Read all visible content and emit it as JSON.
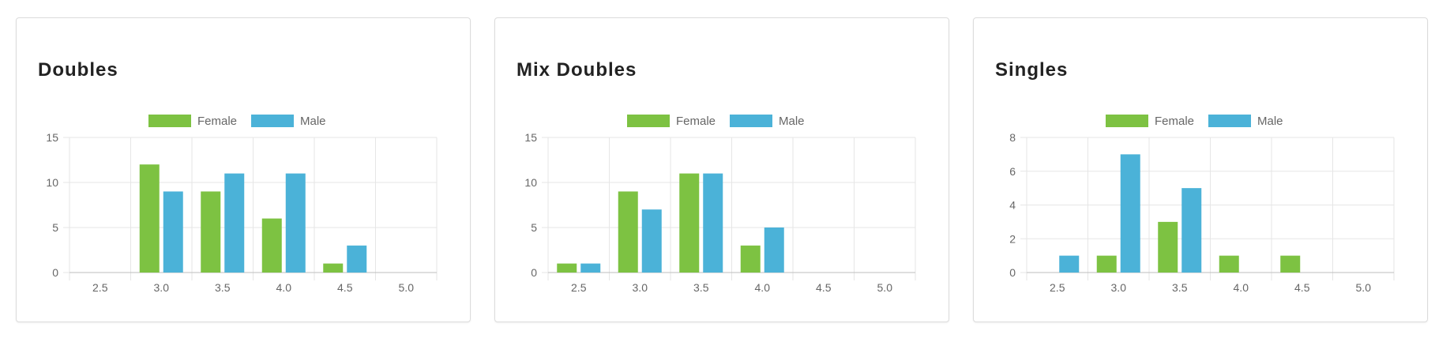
{
  "colors": {
    "female": "#7dc242",
    "male": "#4bb2d8",
    "grid": "#e6e6e6",
    "axis": "#bdbdbd",
    "text": "#666666"
  },
  "cards": [
    {
      "title": "Doubles",
      "chart_data": {
        "type": "bar",
        "categories": [
          "2.5",
          "3.0",
          "3.5",
          "4.0",
          "4.5",
          "5.0"
        ],
        "series": [
          {
            "name": "Female",
            "values": [
              0,
              12,
              9,
              6,
              1,
              0
            ]
          },
          {
            "name": "Male",
            "values": [
              0,
              9,
              11,
              11,
              3,
              0
            ]
          }
        ],
        "yticks": [
          "0",
          "5",
          "10",
          "15"
        ],
        "ylim": [
          0,
          15
        ],
        "grid": true,
        "legend": "top-center"
      }
    },
    {
      "title": "Mix Doubles",
      "chart_data": {
        "type": "bar",
        "categories": [
          "2.5",
          "3.0",
          "3.5",
          "4.0",
          "4.5",
          "5.0"
        ],
        "series": [
          {
            "name": "Female",
            "values": [
              1,
              9,
              11,
              3,
              0,
              0
            ]
          },
          {
            "name": "Male",
            "values": [
              1,
              7,
              11,
              5,
              0,
              0
            ]
          }
        ],
        "yticks": [
          "0",
          "5",
          "10",
          "15"
        ],
        "ylim": [
          0,
          15
        ],
        "grid": true,
        "legend": "top-center"
      }
    },
    {
      "title": "Singles",
      "chart_data": {
        "type": "bar",
        "categories": [
          "2.5",
          "3.0",
          "3.5",
          "4.0",
          "4.5",
          "5.0"
        ],
        "series": [
          {
            "name": "Female",
            "values": [
              0,
              1,
              3,
              1,
              1,
              0
            ]
          },
          {
            "name": "Male",
            "values": [
              1,
              7,
              5,
              0,
              0,
              0
            ]
          }
        ],
        "yticks": [
          "0",
          "2",
          "4",
          "6",
          "8"
        ],
        "ylim": [
          0,
          8
        ],
        "grid": true,
        "legend": "top-center"
      }
    }
  ]
}
